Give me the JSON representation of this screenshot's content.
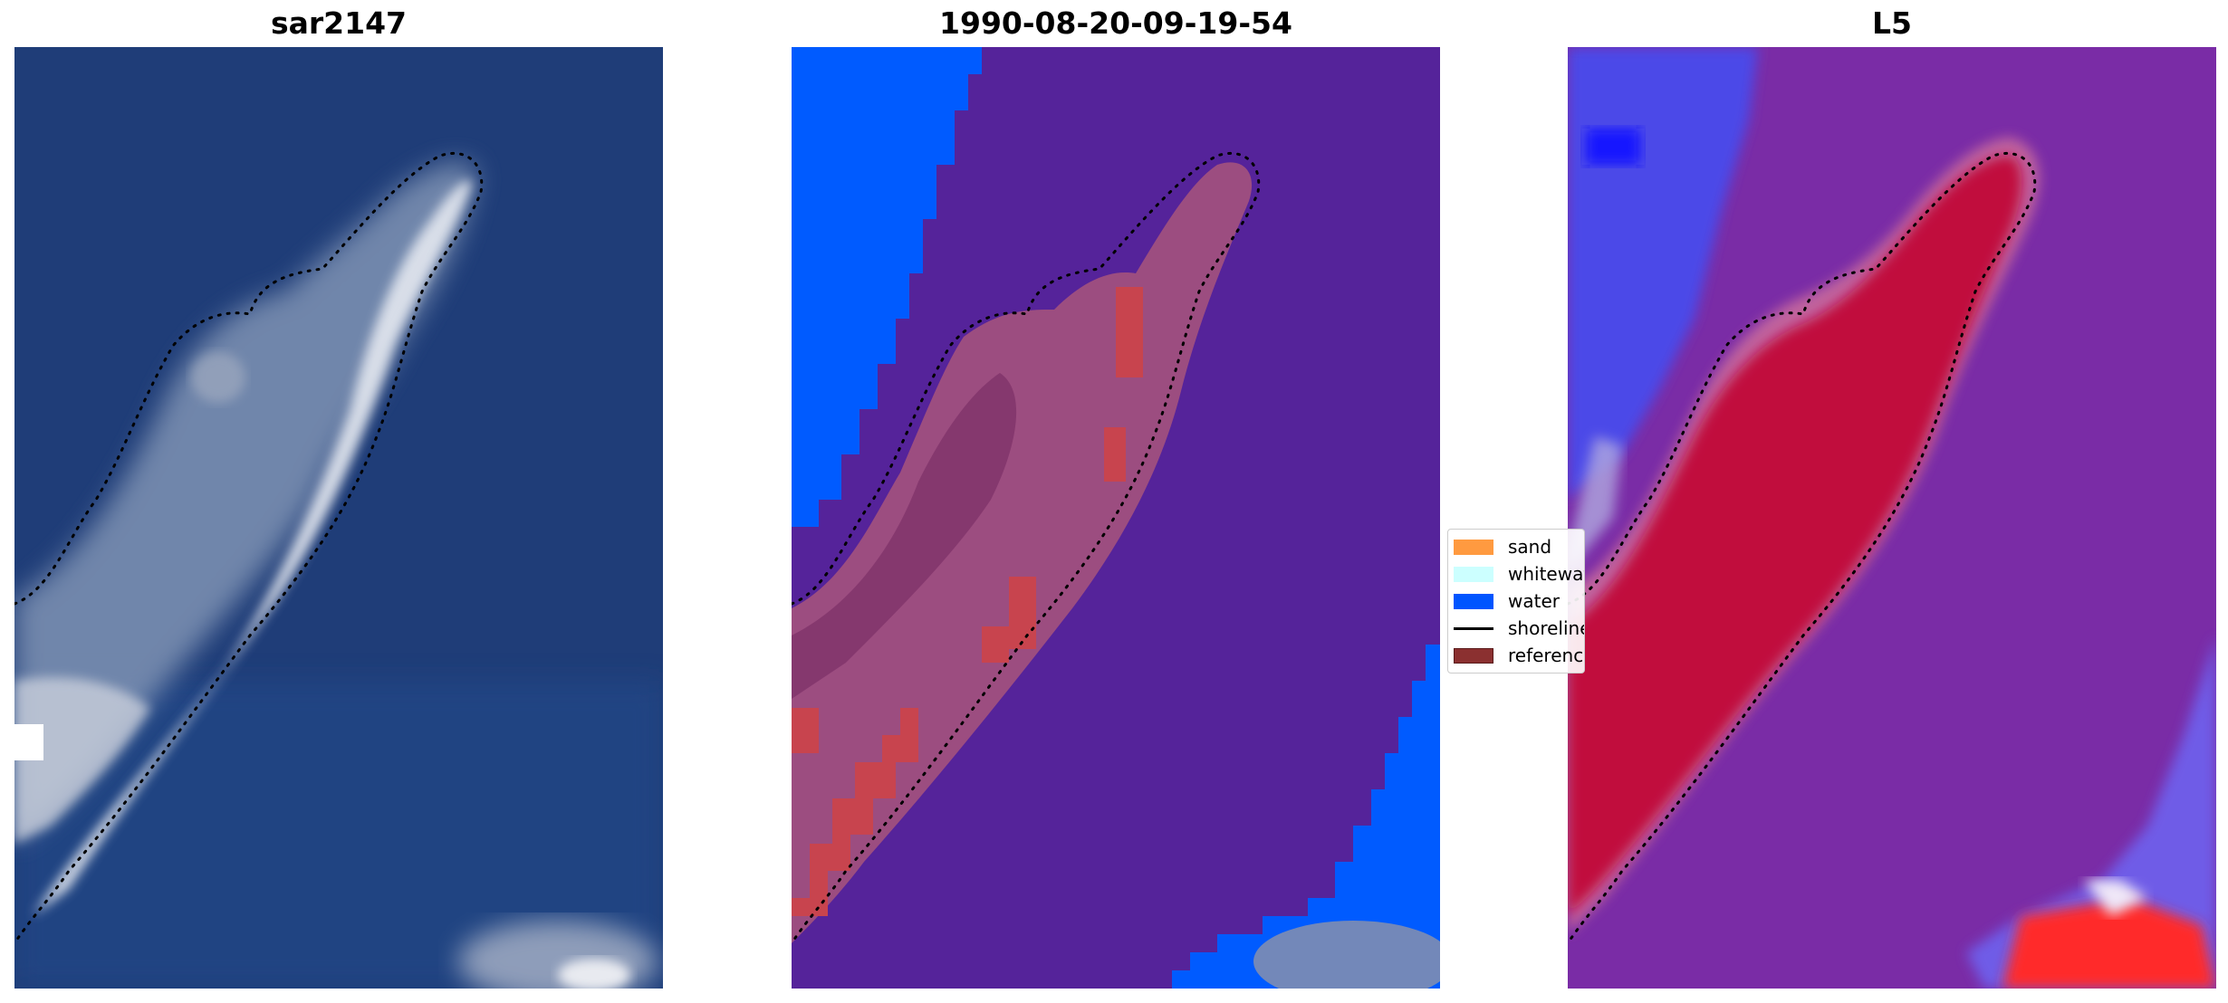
{
  "panels": [
    {
      "title": "sar2147",
      "kind": "rgb"
    },
    {
      "title": "1990-08-20-09-19-54",
      "kind": "classification"
    },
    {
      "title": "L5",
      "kind": "probability"
    }
  ],
  "legend": {
    "items": [
      {
        "label": "sand",
        "color": "#ff9a40",
        "type": "patch"
      },
      {
        "label": "whitewater",
        "color": "#ccffff",
        "type": "patch"
      },
      {
        "label": "water",
        "color": "#0055ff",
        "type": "patch"
      },
      {
        "label": "shoreline",
        "color": "#000000",
        "type": "line"
      },
      {
        "label": "reference",
        "color": "#8b3030",
        "type": "patch"
      }
    ]
  },
  "colors": {
    "rgb_water": "#1e3f7c",
    "rgb_sand": "#c9d2e0",
    "class_land": "#55239a",
    "class_water": "#005bff",
    "class_reference": "#b55080",
    "prob_bg": "#7a2ca6",
    "prob_high": "#c0063a",
    "prob_low": "#3c40f4"
  }
}
